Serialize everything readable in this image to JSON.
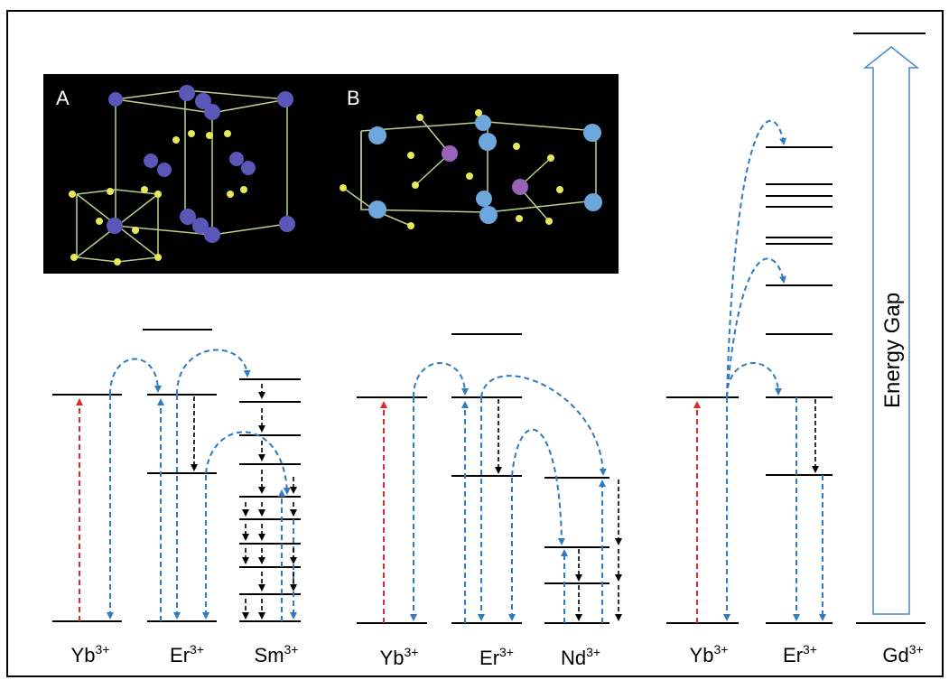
{
  "panels": {
    "a": {
      "label": "A"
    },
    "b": {
      "label": "B"
    }
  },
  "groups": [
    {
      "ions": [
        {
          "symbol": "Yb",
          "charge": "3+"
        },
        {
          "symbol": "Er",
          "charge": "3+"
        },
        {
          "symbol": "Sm",
          "charge": "3+"
        }
      ]
    },
    {
      "ions": [
        {
          "symbol": "Yb",
          "charge": "3+"
        },
        {
          "symbol": "Er",
          "charge": "3+"
        },
        {
          "symbol": "Nd",
          "charge": "3+"
        }
      ]
    },
    {
      "ions": [
        {
          "symbol": "Yb",
          "charge": "3+"
        },
        {
          "symbol": "Er",
          "charge": "3+"
        },
        {
          "symbol": "Gd",
          "charge": "3+"
        }
      ]
    }
  ],
  "energy_gap": "Energy Gap"
}
